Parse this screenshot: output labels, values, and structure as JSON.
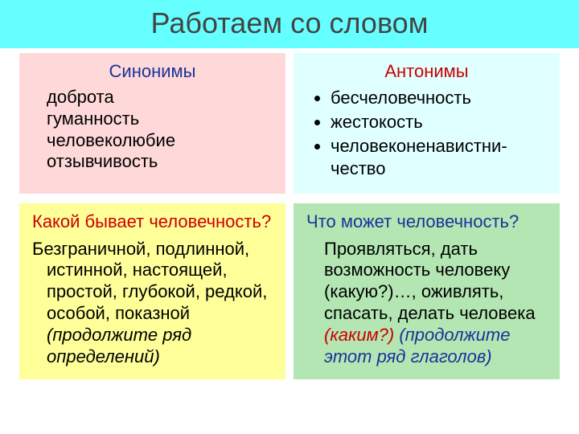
{
  "colors": {
    "title_bg": "#66ffff",
    "title_fg": "#444444",
    "pink_bg": "#ffd9d9",
    "cyan_bg": "#e0ffff",
    "yellow_bg": "#ffff99",
    "green_bg": "#b3e6b3",
    "blue_text": "#1a3399",
    "red_text": "#cc0000",
    "body_text": "#000000"
  },
  "typography": {
    "title_fontsize": 36,
    "body_fontsize": 22,
    "font_family": "Arial"
  },
  "title": "Работаем со словом",
  "top_left": {
    "heading": "Синонимы",
    "heading_color": "#1a3399",
    "bg": "#ffd9d9",
    "lines": [
      "доброта",
      "гуманность человеколюбие отзывчивость"
    ]
  },
  "top_right": {
    "heading": "Антонимы",
    "heading_color": "#cc0000",
    "bg": "#e0ffff",
    "bullets": [
      "бесчеловечность",
      "жестокость",
      "человеконенавистни-чество"
    ]
  },
  "bottom_left": {
    "heading": "Какой бывает человечность?",
    "heading_color": "#cc0000",
    "bg": "#ffff99",
    "body_plain": "Безграничной, подлинной, истинной, настоящей, простой, глубокой, редкой, особой, показной ",
    "body_italic": "(продолжите ряд определений)",
    "italic_color": "#000000"
  },
  "bottom_right": {
    "heading": "Что может человечность?",
    "heading_color": "#1a3399",
    "bg": "#b3e6b3",
    "body_plain": "Проявляться, дать возможность человеку (какую?)…, оживлять, спасать, делать человека ",
    "body_italic1": "(каким?) ",
    "body_italic2": "(продолжите этот ряд глаголов)",
    "italic1_color": "#cc0000",
    "italic2_color": "#1a3399"
  }
}
